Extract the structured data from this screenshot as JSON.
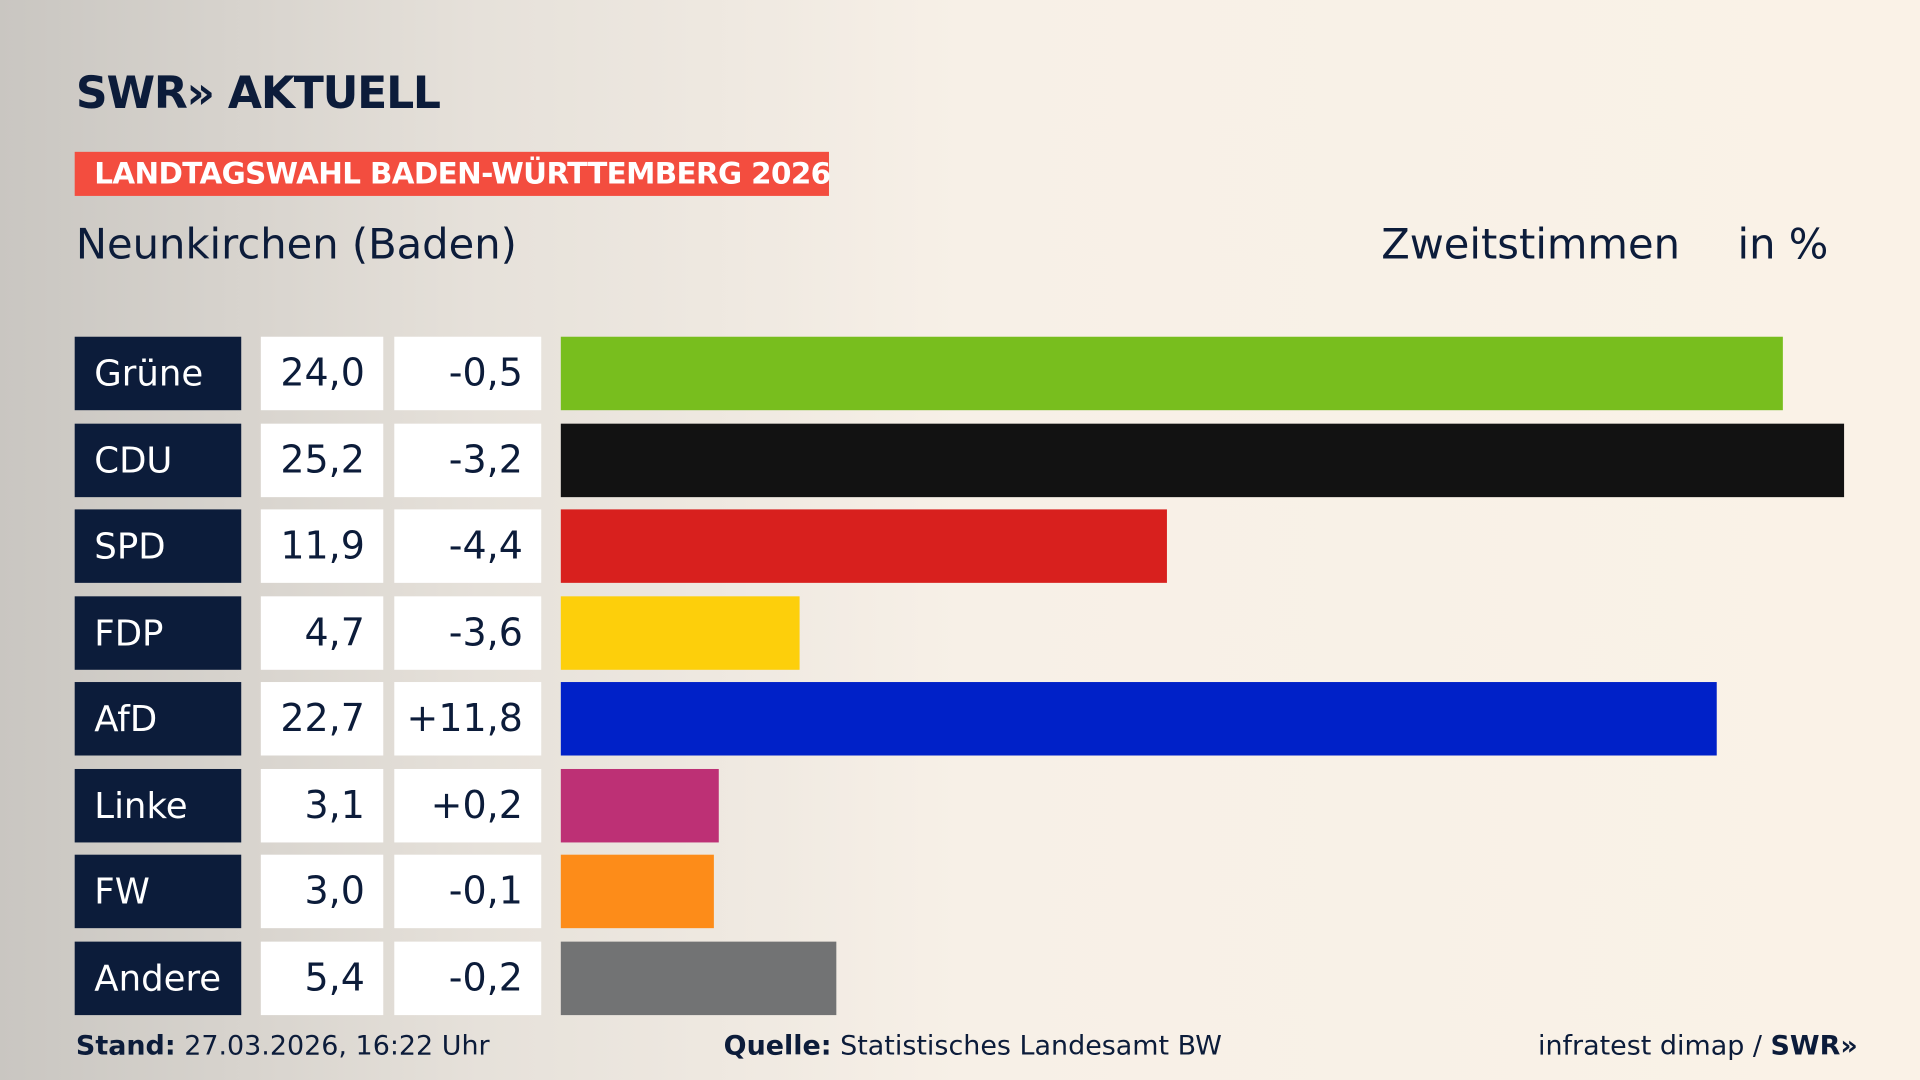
{
  "header": {
    "logo": "SWR» AKTUELL",
    "tag": "LANDTAGSWAHL BADEN-WÜRTTEMBERG 2026",
    "place": "Neunkirchen (Baden)",
    "metric": "Zweitstimmen",
    "unit": "in %"
  },
  "chart_data": {
    "type": "bar",
    "orientation": "horizontal",
    "categories": [
      "Grüne",
      "CDU",
      "SPD",
      "FDP",
      "AfD",
      "Linke",
      "FW",
      "Andere"
    ],
    "values": [
      24.0,
      25.2,
      11.9,
      4.7,
      22.7,
      3.1,
      3.0,
      5.4
    ],
    "value_labels": [
      "24,0",
      "25,2",
      "11,9",
      "4,7",
      "22,7",
      "3,1",
      "3,0",
      "5,4"
    ],
    "change_labels": [
      "-0,5",
      "-3,2",
      "-4,4",
      "-3,6",
      "+11,8",
      "+0,2",
      "-0,1",
      "-0,2"
    ],
    "changes": [
      -0.5,
      -3.2,
      -4.4,
      -3.6,
      11.8,
      0.2,
      -0.1,
      -0.2
    ],
    "colors": [
      "#78be1e",
      "#121212",
      "#d8201e",
      "#fdcf0b",
      "#0021c8",
      "#bd3075",
      "#fd8c19",
      "#727374"
    ],
    "xlim": [
      0,
      25.2
    ],
    "grid": false
  },
  "footer": {
    "stand_label": "Stand:",
    "stand": "27.03.2026, 16:22 Uhr",
    "source_label": "Quelle:",
    "source": "Statistisches Landesamt BW",
    "credit": "infratest dimap / ",
    "credit_logo": "SWR»"
  }
}
